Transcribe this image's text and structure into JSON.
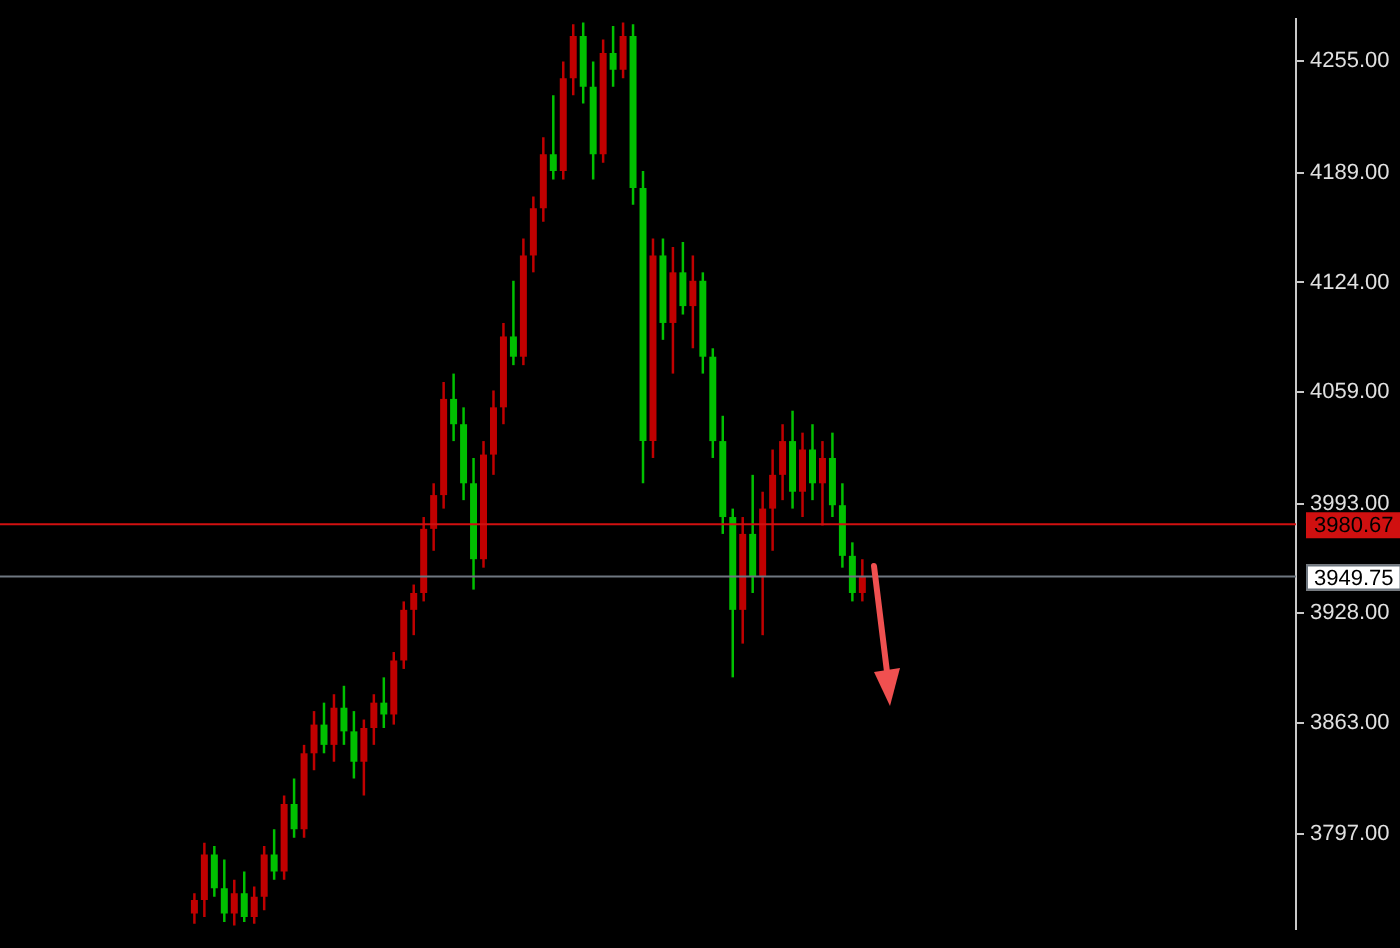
{
  "chart_data": {
    "type": "candlestick",
    "categories": [
      null,
      null,
      null,
      null,
      null,
      null,
      null,
      null,
      null,
      null,
      null,
      null,
      null,
      null,
      null,
      null,
      null,
      null,
      null,
      null,
      null,
      null,
      null,
      null,
      null,
      null,
      null,
      null,
      null,
      null,
      null,
      null,
      null,
      null,
      null,
      null,
      null,
      null,
      null,
      null,
      null,
      null,
      null,
      null,
      null,
      null,
      null,
      null,
      null,
      null,
      null,
      null,
      null,
      null,
      null,
      null,
      null,
      null,
      null,
      null,
      null,
      null,
      null,
      null,
      null,
      null,
      null,
      null,
      null,
      null,
      null,
      null,
      null,
      null,
      null,
      null,
      null,
      null,
      null,
      null,
      null,
      null,
      null,
      null,
      null,
      null,
      null,
      null,
      null,
      null,
      null,
      null,
      null,
      null,
      null,
      null,
      null,
      null,
      null,
      null,
      null,
      null,
      null,
      null,
      null,
      null,
      null,
      null,
      null,
      null,
      null,
      null,
      null,
      null,
      null,
      null,
      null,
      null,
      null,
      null,
      null,
      null,
      null,
      null,
      null,
      null,
      null,
      null,
      null,
      null
    ],
    "ohlc": [
      null,
      null,
      null,
      null,
      null,
      null,
      null,
      null,
      null,
      null,
      null,
      null,
      null,
      null,
      null,
      null,
      null,
      null,
      null,
      [
        3750,
        3762,
        3744,
        3758
      ],
      [
        3758,
        3792,
        3748,
        3785
      ],
      [
        3785,
        3790,
        3760,
        3765
      ],
      [
        3765,
        3782,
        3745,
        3750
      ],
      [
        3750,
        3770,
        3743,
        3762
      ],
      [
        3762,
        3775,
        3745,
        3748
      ],
      [
        3748,
        3766,
        3744,
        3760
      ],
      [
        3760,
        3790,
        3752,
        3785
      ],
      [
        3785,
        3800,
        3770,
        3775
      ],
      [
        3775,
        3820,
        3770,
        3815
      ],
      [
        3815,
        3830,
        3795,
        3800
      ],
      [
        3800,
        3850,
        3795,
        3845
      ],
      [
        3845,
        3870,
        3835,
        3862
      ],
      [
        3862,
        3875,
        3845,
        3850
      ],
      [
        3850,
        3880,
        3840,
        3872
      ],
      [
        3872,
        3885,
        3850,
        3858
      ],
      [
        3858,
        3870,
        3830,
        3840
      ],
      [
        3840,
        3865,
        3820,
        3860
      ],
      [
        3860,
        3880,
        3850,
        3875
      ],
      [
        3875,
        3890,
        3860,
        3868
      ],
      [
        3868,
        3905,
        3862,
        3900
      ],
      [
        3900,
        3935,
        3895,
        3930
      ],
      [
        3930,
        3945,
        3915,
        3940
      ],
      [
        3940,
        3985,
        3935,
        3978
      ],
      [
        3978,
        4005,
        3965,
        3998
      ],
      [
        3998,
        4065,
        3990,
        4055
      ],
      [
        4055,
        4070,
        4030,
        4040
      ],
      [
        4040,
        4050,
        3995,
        4005
      ],
      [
        4005,
        4020,
        3942,
        3960
      ],
      [
        3960,
        4030,
        3955,
        4022
      ],
      [
        4022,
        4060,
        4010,
        4050
      ],
      [
        4050,
        4100,
        4040,
        4092
      ],
      [
        4092,
        4125,
        4075,
        4080
      ],
      [
        4080,
        4150,
        4075,
        4140
      ],
      [
        4140,
        4175,
        4130,
        4168
      ],
      [
        4168,
        4210,
        4160,
        4200
      ],
      [
        4200,
        4235,
        4185,
        4190
      ],
      [
        4190,
        4255,
        4185,
        4245
      ],
      [
        4245,
        4277,
        4235,
        4270
      ],
      [
        4270,
        4278,
        4230,
        4240
      ],
      [
        4240,
        4255,
        4185,
        4200
      ],
      [
        4200,
        4268,
        4195,
        4260
      ],
      [
        4260,
        4276,
        4240,
        4250
      ],
      [
        4250,
        4278,
        4245,
        4270
      ],
      [
        4270,
        4277,
        4170,
        4180
      ],
      [
        4180,
        4190,
        4005,
        4030
      ],
      [
        4030,
        4150,
        4020,
        4140
      ],
      [
        4140,
        4150,
        4090,
        4100
      ],
      [
        4100,
        4145,
        4070,
        4130
      ],
      [
        4130,
        4148,
        4105,
        4110
      ],
      [
        4110,
        4140,
        4085,
        4125
      ],
      [
        4125,
        4130,
        4070,
        4080
      ],
      [
        4080,
        4085,
        4020,
        4030
      ],
      [
        4030,
        4045,
        3975,
        3985
      ],
      [
        3985,
        3990,
        3890,
        3930
      ],
      [
        3930,
        3985,
        3910,
        3975
      ],
      [
        3975,
        4010,
        3940,
        3950
      ],
      [
        3950,
        4000,
        3915,
        3990
      ],
      [
        3990,
        4025,
        3965,
        4010
      ],
      [
        4010,
        4040,
        3995,
        4030
      ],
      [
        4030,
        4048,
        3990,
        4000
      ],
      [
        4000,
        4035,
        3985,
        4025
      ],
      [
        4025,
        4040,
        3995,
        4005
      ],
      [
        4005,
        4030,
        3980,
        4020
      ],
      [
        4020,
        4035,
        3985,
        3992
      ],
      [
        3992,
        4005,
        3955,
        3962
      ],
      [
        3962,
        3970,
        3935,
        3940
      ],
      [
        3940,
        3960,
        3935,
        3949.75
      ],
      null,
      null,
      null,
      null,
      null,
      null,
      null,
      null,
      null,
      null,
      null,
      null,
      null,
      null,
      null,
      null,
      null,
      null,
      null,
      null,
      null,
      null,
      null,
      null,
      null,
      null,
      null,
      null,
      null,
      null,
      null,
      null,
      null,
      null,
      null,
      null,
      null,
      null,
      null,
      null,
      null,
      null,
      null
    ],
    "colors": [
      null,
      null,
      null,
      null,
      null,
      null,
      null,
      null,
      null,
      null,
      null,
      null,
      null,
      null,
      null,
      null,
      null,
      null,
      null,
      "#c00000",
      "#c00000",
      "#00c000",
      "#00c000",
      "#c00000",
      "#00c000",
      "#c00000",
      "#c00000",
      "#00c000",
      "#c00000",
      "#00c000",
      "#c00000",
      "#c00000",
      "#00c000",
      "#c00000",
      "#00c000",
      "#00c000",
      "#c00000",
      "#c00000",
      "#00c000",
      "#c00000",
      "#c00000",
      "#c00000",
      "#c00000",
      "#c00000",
      "#c00000",
      "#00c000",
      "#00c000",
      "#00c000",
      "#c00000",
      "#c00000",
      "#c00000",
      "#00c000",
      "#c00000",
      "#c00000",
      "#c00000",
      "#00c000",
      "#c00000",
      "#c00000",
      "#00c000",
      "#00c000",
      "#c00000",
      "#00c000",
      "#c00000",
      "#00c000",
      "#00c000",
      "#c00000",
      "#00c000",
      "#c00000",
      "#00c000",
      "#c00000",
      "#00c000",
      "#00c000",
      "#00c000",
      "#00c000",
      "#c00000",
      "#00c000",
      "#c00000",
      "#c00000",
      "#c00000",
      "#00c000",
      "#c00000",
      "#00c000",
      "#c00000",
      "#00c000",
      "#00c000",
      "#00c000",
      "#c00000",
      null,
      null,
      null,
      null,
      null,
      null,
      null,
      null,
      null,
      null,
      null,
      null,
      null,
      null,
      null,
      null,
      null,
      null,
      null,
      null,
      null,
      null,
      null,
      null,
      null,
      null,
      null,
      null,
      null,
      null,
      null,
      null,
      null,
      null,
      null,
      null,
      null,
      null,
      null,
      null,
      null,
      null,
      null
    ],
    "ylim": [
      3741,
      4280
    ],
    "yticks": [
      {
        "value": 3797,
        "label": "3797.00"
      },
      {
        "value": 3863,
        "label": "3863.00"
      },
      {
        "value": 3928,
        "label": "3928.00"
      },
      {
        "value": 3993,
        "label": "3993.00"
      },
      {
        "value": 4059,
        "label": "4059.00"
      },
      {
        "value": 4124,
        "label": "4124.00"
      },
      {
        "value": 4189,
        "label": "4189.00"
      },
      {
        "value": 4255,
        "label": "4255.00"
      }
    ],
    "ref_lines": [
      {
        "axis": "y",
        "value": 3980.67,
        "label": "3980.67",
        "color": "#d01010"
      },
      {
        "axis": "y",
        "value": 3949.75,
        "label": "3949.75",
        "color": "#6e7780"
      }
    ],
    "tick_labels": "y",
    "grid": false,
    "legend": false
  }
}
